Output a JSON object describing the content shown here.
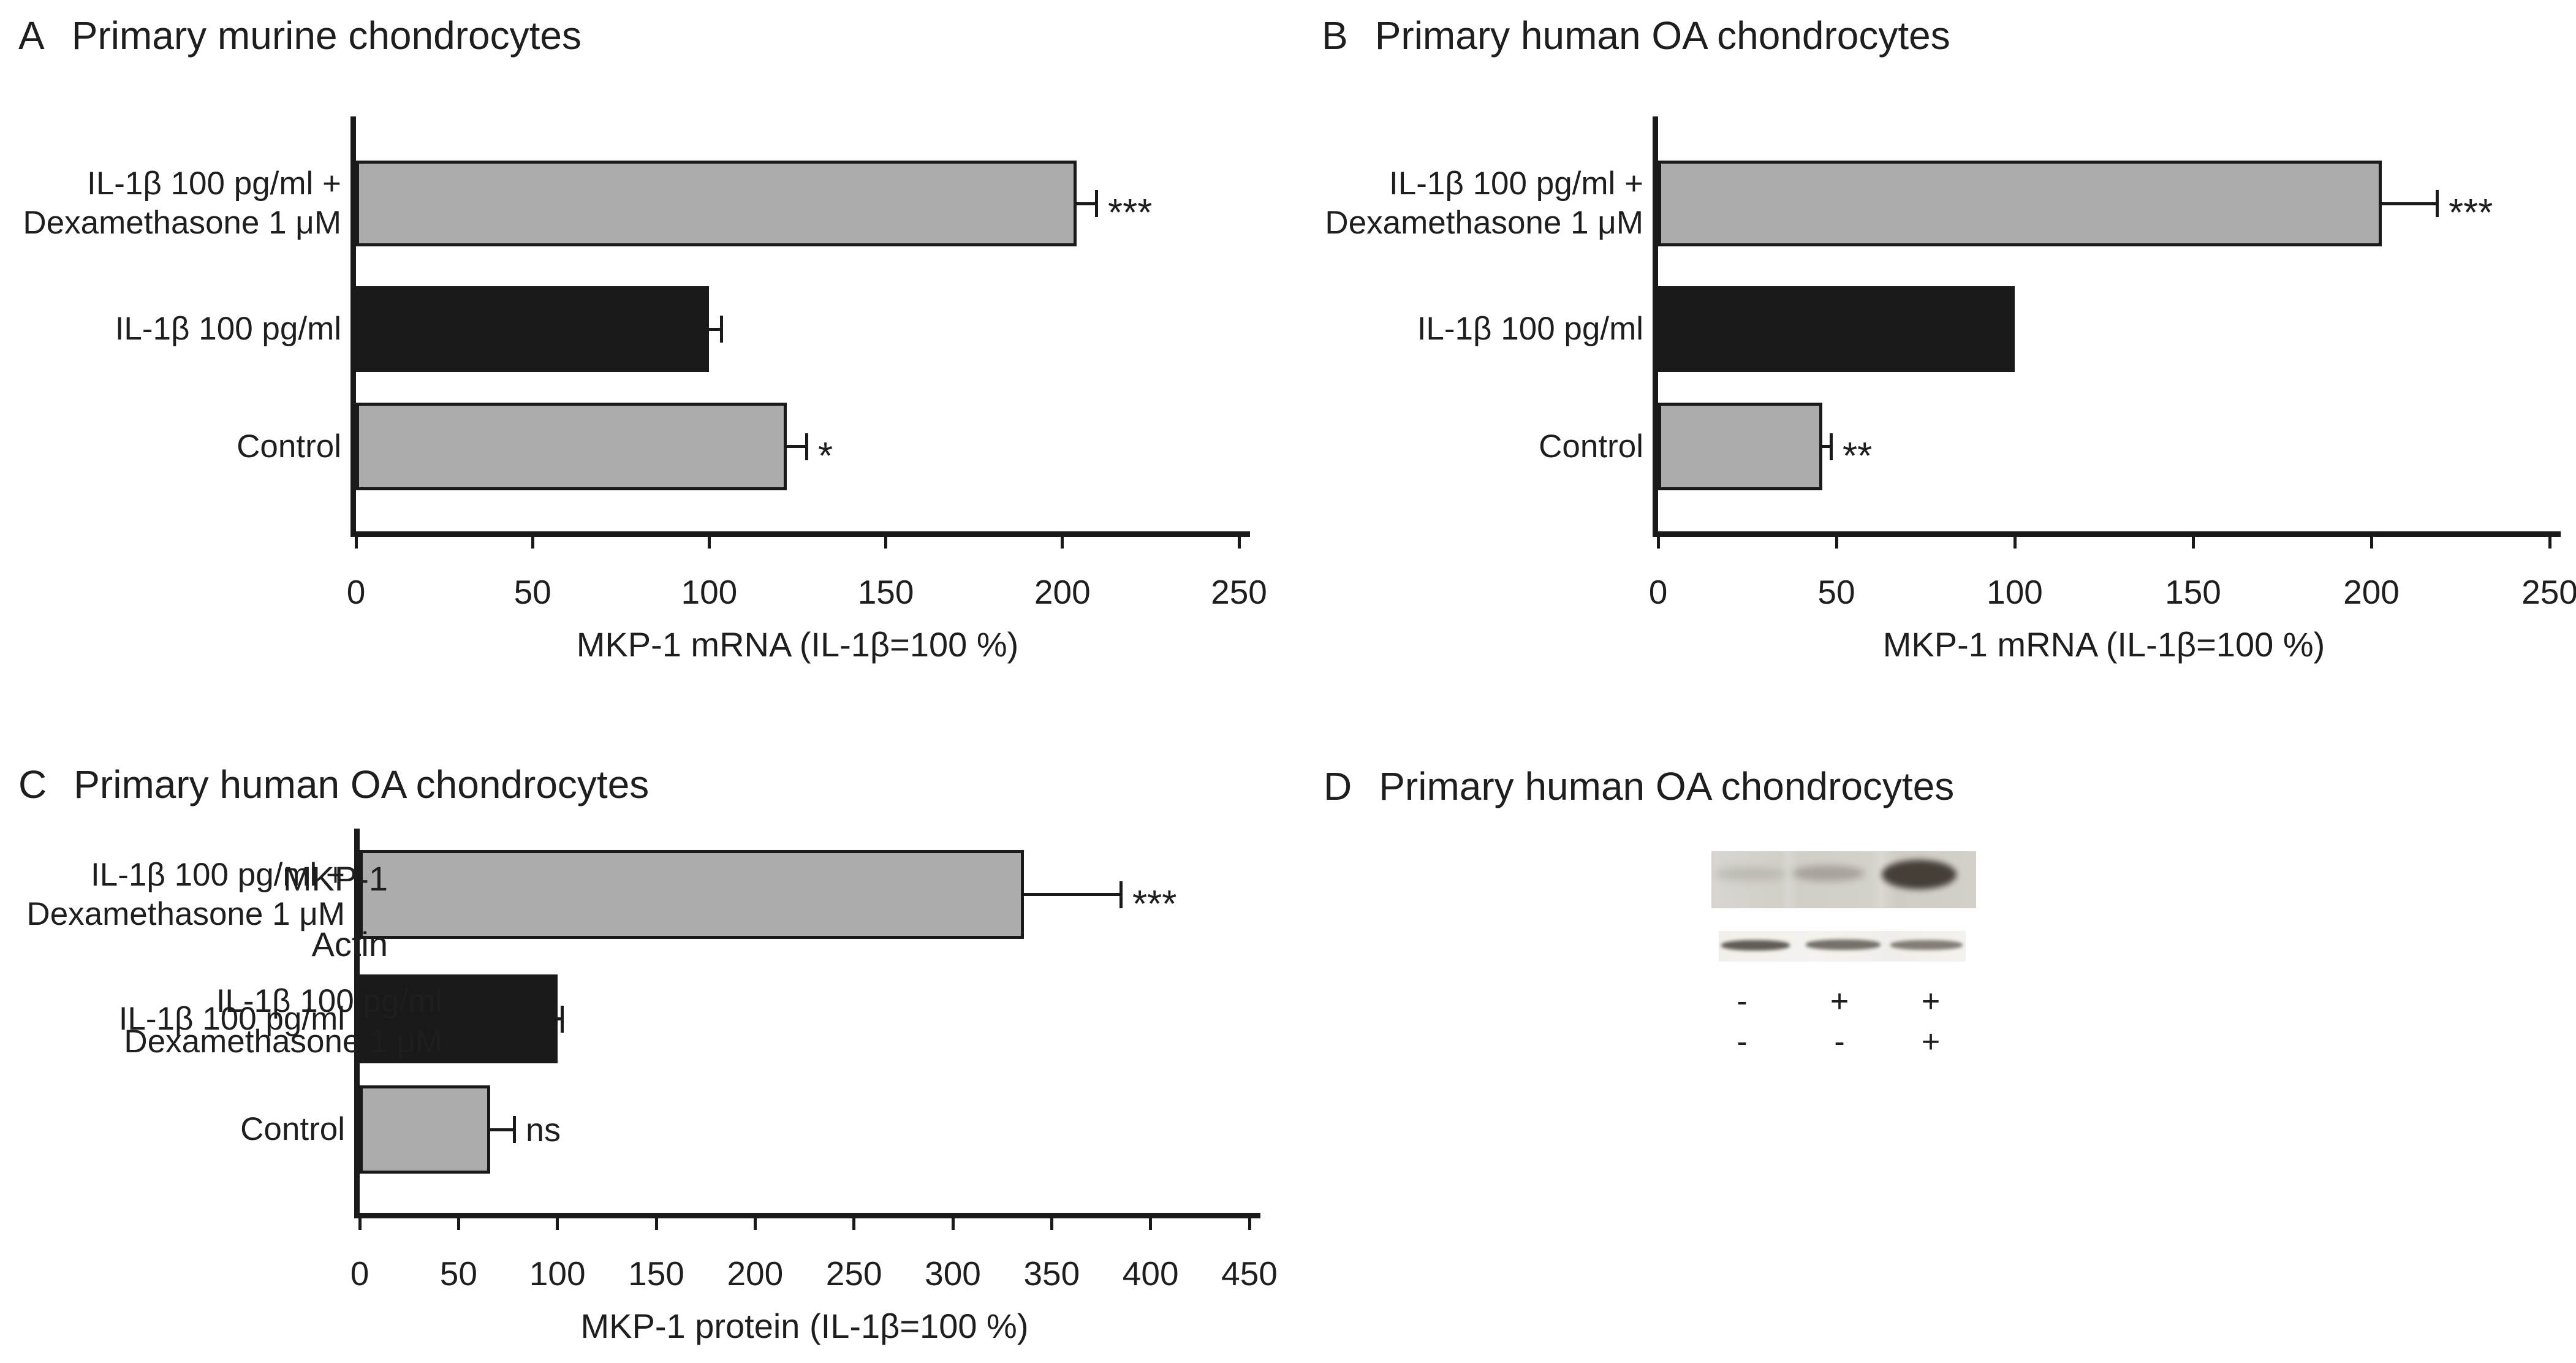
{
  "colors": {
    "gray_bar": "#acacac",
    "black_bar": "#191919",
    "axis": "#1a1a1a",
    "text": "#1e1e1e"
  },
  "chart_data": [
    {
      "panel": "A",
      "title": "Primary murine chondrocytes",
      "type": "bar",
      "orientation": "horizontal",
      "xlabel": "MKP-1 mRNA (IL-1β=100 %)",
      "xlim": [
        0,
        250
      ],
      "xticks": [
        0,
        50,
        100,
        150,
        200,
        250
      ],
      "grid": false,
      "bars": [
        {
          "label_lines": [
            "IL-1β 100 pg/ml +",
            "Dexamethasone 1 μM"
          ],
          "value": 204,
          "error": 6,
          "sig": "***",
          "color": "gray"
        },
        {
          "label_lines": [
            "IL-1β 100 pg/ml"
          ],
          "value": 100,
          "error": 4,
          "sig": "",
          "color": "black"
        },
        {
          "label_lines": [
            "Control"
          ],
          "value": 122,
          "error": 6,
          "sig": "*",
          "color": "gray"
        }
      ]
    },
    {
      "panel": "B",
      "title": "Primary human OA chondrocytes",
      "type": "bar",
      "orientation": "horizontal",
      "xlabel": "MKP-1 mRNA (IL-1β=100 %)",
      "xlim": [
        0,
        250
      ],
      "xticks": [
        0,
        50,
        100,
        150,
        200,
        250
      ],
      "grid": false,
      "bars": [
        {
          "label_lines": [
            "IL-1β 100 pg/ml +",
            "Dexamethasone 1 μM"
          ],
          "value": 203,
          "error": 16,
          "sig": "***",
          "color": "gray"
        },
        {
          "label_lines": [
            "IL-1β 100 pg/ml"
          ],
          "value": 100,
          "error": 0,
          "sig": "",
          "color": "black"
        },
        {
          "label_lines": [
            "Control"
          ],
          "value": 46,
          "error": 3,
          "sig": "**",
          "color": "gray"
        }
      ]
    },
    {
      "panel": "C",
      "title": "Primary human OA chondrocytes",
      "type": "bar",
      "orientation": "horizontal",
      "xlabel": "MKP-1 protein (IL-1β=100 %)",
      "xlim": [
        0,
        450
      ],
      "xticks": [
        0,
        50,
        100,
        150,
        200,
        250,
        300,
        350,
        400,
        450
      ],
      "grid": false,
      "bars": [
        {
          "label_lines": [
            "IL-1β 100 pg/ml +",
            "Dexamethasone 1 μM"
          ],
          "value": 336,
          "error": 50,
          "sig": "***",
          "color": "gray"
        },
        {
          "label_lines": [
            "IL-1β 100 pg/ml"
          ],
          "value": 100,
          "error": 3,
          "sig": "",
          "color": "black"
        },
        {
          "label_lines": [
            "Control"
          ],
          "value": 66,
          "error": 13,
          "sig": "ns",
          "color": "gray"
        }
      ]
    }
  ],
  "blot_panel": {
    "panel": "D",
    "title": "Primary human OA chondrocytes",
    "rows": [
      {
        "label": "MKP-1",
        "band_intensities": [
          "faint",
          "light",
          "strong"
        ]
      },
      {
        "label": "Actin",
        "band_intensities": [
          "strong",
          "strong",
          "medium"
        ]
      }
    ],
    "conditions": [
      {
        "label": "IL-1β 100 pg/ml",
        "values": [
          "-",
          "+",
          "+"
        ]
      },
      {
        "label": "Dexamethasone 1 μM",
        "values": [
          "-",
          "-",
          "+"
        ]
      }
    ]
  }
}
